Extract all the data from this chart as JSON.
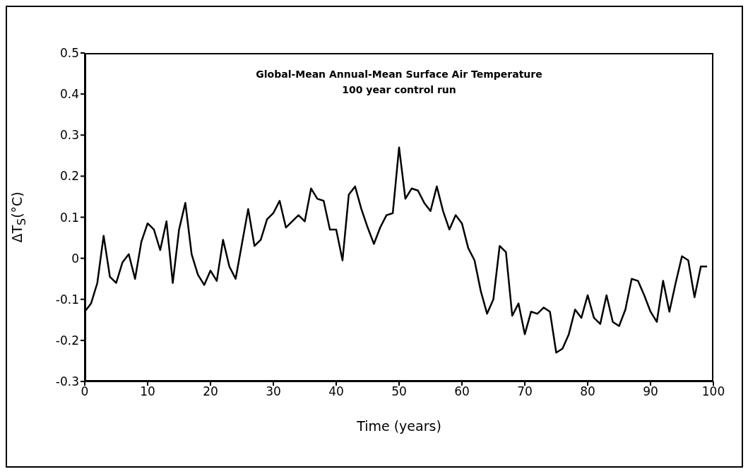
{
  "chart_data": {
    "type": "line",
    "title": "Global-Mean Annual-Mean Surface Air Temperature",
    "subtitle": "100 year control run",
    "xlabel": "Time (years)",
    "ylabel": "ΔT$_{S}$(°C)",
    "x": [
      0,
      1,
      2,
      3,
      4,
      5,
      6,
      7,
      8,
      9,
      10,
      11,
      12,
      13,
      14,
      15,
      16,
      17,
      18,
      19,
      20,
      21,
      22,
      23,
      24,
      25,
      26,
      27,
      28,
      29,
      30,
      31,
      32,
      33,
      34,
      35,
      36,
      37,
      38,
      39,
      40,
      41,
      42,
      43,
      44,
      45,
      46,
      47,
      48,
      49,
      50,
      51,
      52,
      53,
      54,
      55,
      56,
      57,
      58,
      59,
      60,
      61,
      62,
      63,
      64,
      65,
      66,
      67,
      68,
      69,
      70,
      71,
      72,
      73,
      74,
      75,
      76,
      77,
      78,
      79,
      80,
      81,
      82,
      83,
      84,
      85,
      86,
      87,
      88,
      89,
      90,
      91,
      92,
      93,
      94,
      95,
      96,
      97,
      98,
      99
    ],
    "series": [
      {
        "color": "#000000",
        "values": [
          -0.13,
          -0.11,
          -0.06,
          0.055,
          -0.045,
          -0.06,
          -0.01,
          0.01,
          -0.05,
          0.04,
          0.085,
          0.07,
          0.02,
          0.09,
          -0.06,
          0.07,
          0.135,
          0.01,
          -0.04,
          -0.065,
          -0.03,
          -0.055,
          0.045,
          -0.02,
          -0.05,
          0.035,
          0.12,
          0.03,
          0.045,
          0.095,
          0.11,
          0.14,
          0.075,
          0.09,
          0.105,
          0.09,
          0.17,
          0.145,
          0.14,
          0.07,
          0.07,
          -0.005,
          0.155,
          0.175,
          0.12,
          0.075,
          0.035,
          0.075,
          0.105,
          0.11,
          0.27,
          0.145,
          0.17,
          0.165,
          0.135,
          0.115,
          0.175,
          0.115,
          0.07,
          0.105,
          0.085,
          0.025,
          -0.005,
          -0.08,
          -0.135,
          -0.1,
          0.03,
          0.015,
          -0.14,
          -0.11,
          -0.185,
          -0.13,
          -0.135,
          -0.12,
          -0.13,
          -0.23,
          -0.22,
          -0.185,
          -0.125,
          -0.145,
          -0.09,
          -0.145,
          -0.16,
          -0.09,
          -0.155,
          -0.165,
          -0.125,
          -0.05,
          -0.055,
          -0.09,
          -0.13,
          -0.155,
          -0.055,
          -0.13,
          -0.06,
          0.005,
          -0.005,
          -0.095,
          -0.02,
          -0.02
        ]
      }
    ],
    "xlim": [
      0,
      100
    ],
    "xticks": [
      0,
      10,
      20,
      30,
      40,
      50,
      60,
      70,
      80,
      90,
      100
    ],
    "ylim": [
      -0.3,
      0.5
    ],
    "yticks": [
      -0.3,
      -0.2,
      -0.1,
      0,
      0.1,
      0.2,
      0.3,
      0.4,
      0.5
    ],
    "marker": "none"
  }
}
